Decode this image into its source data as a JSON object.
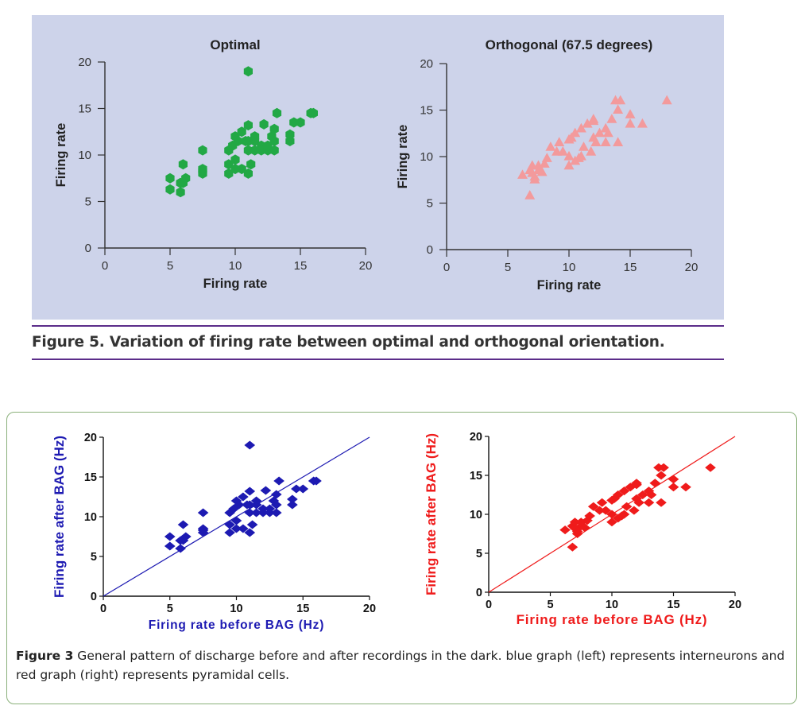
{
  "figure5": {
    "caption": "Figure 5. Variation of firing rate between optimal and orthogonal orientation."
  },
  "figure3": {
    "caption_label": "Figure 3",
    "caption_text": " General pattern of discharge before and after recordings in the dark. blue graph (left) represents interneurons and red graph (right) represents pyramidal cells."
  },
  "chart_data": [
    {
      "type": "scatter",
      "title": "Optimal",
      "xlabel": "Firing rate",
      "ylabel": "Firing rate",
      "xlim": [
        0,
        20
      ],
      "ylim": [
        0,
        20
      ],
      "xticks": [
        "0",
        "5",
        "10",
        "15",
        "20"
      ],
      "yticks": [
        "0",
        "5",
        "10",
        "15",
        "20"
      ],
      "marker": "hexagon",
      "color": "#22a845",
      "x": [
        5,
        5,
        5.8,
        5.8,
        6,
        6.2,
        6,
        7.5,
        7.5,
        7.5,
        7.5,
        9.5,
        9.5,
        9.5,
        9.8,
        10,
        10,
        10,
        10.2,
        10.5,
        10.5,
        10.8,
        11,
        11,
        11,
        11,
        11.2,
        11.5,
        11.5,
        11.5,
        12,
        12,
        12.2,
        12.5,
        12.5,
        12.8,
        13,
        13,
        13,
        13.2,
        14.2,
        14.2,
        14.5,
        15,
        15.8,
        16,
        11
      ],
      "y": [
        6.3,
        7.5,
        6,
        7,
        7,
        7.5,
        9,
        8,
        8.3,
        10.5,
        8.5,
        8,
        9,
        10.5,
        11,
        12,
        9.5,
        8.5,
        11.5,
        12.5,
        8.5,
        11.5,
        8,
        10.5,
        11.5,
        13.2,
        9,
        10.5,
        11.5,
        12,
        11,
        10.5,
        13.3,
        10.5,
        11,
        12,
        11.5,
        10.5,
        12.8,
        14.5,
        11.5,
        12.2,
        13.5,
        13.5,
        14.5,
        14.5,
        19
      ]
    },
    {
      "type": "scatter",
      "title": "Orthogonal (67.5 degrees)",
      "xlabel": "Firing rate",
      "ylabel": "Firing rate",
      "xlim": [
        0,
        20
      ],
      "ylim": [
        0,
        20
      ],
      "xticks": [
        "0",
        "5",
        "10",
        "15",
        "20"
      ],
      "yticks": [
        "0",
        "5",
        "10",
        "15",
        "20"
      ],
      "marker": "triangle",
      "color": "#f39a9c",
      "x": [
        6.2,
        6.8,
        7,
        7,
        7.2,
        7.5,
        7.5,
        7.8,
        8,
        8.2,
        8.5,
        9,
        9.5,
        10,
        10,
        10,
        10.2,
        10.5,
        10.5,
        11,
        11,
        11.2,
        11.5,
        11.8,
        12,
        12,
        12,
        12.2,
        12.5,
        13,
        13,
        13.2,
        13.5,
        13.8,
        14,
        14,
        14.2,
        15,
        15,
        16,
        18,
        6.8,
        7.2,
        9.2,
        10.8
      ],
      "y": [
        8,
        8.5,
        8.2,
        9,
        7.5,
        8.5,
        9,
        8.3,
        9.2,
        9.8,
        11,
        10.5,
        10.5,
        9,
        10,
        11.8,
        12,
        9.5,
        12.5,
        13,
        10,
        11,
        13.5,
        10.5,
        14,
        12,
        13.8,
        11.5,
        12.5,
        11.5,
        13,
        12.5,
        14,
        16,
        11.5,
        15,
        16,
        13.5,
        14.5,
        13.5,
        16,
        5.8,
        7.8,
        11.5,
        9.8
      ]
    },
    {
      "type": "scatter",
      "xlabel": "Firing rate before BAG (Hz)",
      "ylabel": "Firing rate after BAG (Hz)",
      "xlim": [
        0,
        20
      ],
      "ylim": [
        0,
        20
      ],
      "xticks": [
        "0",
        "5",
        "10",
        "15",
        "20"
      ],
      "yticks": [
        "0",
        "5",
        "10",
        "15",
        "20"
      ],
      "marker": "diamond",
      "color": "#1d1ab2",
      "x": [
        5,
        5,
        5.8,
        5.8,
        6,
        6.2,
        6,
        7.5,
        7.5,
        7.5,
        7.5,
        9.5,
        9.5,
        9.5,
        9.8,
        10,
        10,
        10,
        10.2,
        10.5,
        10.5,
        10.8,
        11,
        11,
        11,
        11,
        11.2,
        11.5,
        11.5,
        11.5,
        12,
        12,
        12.2,
        12.5,
        12.5,
        12.8,
        13,
        13,
        13,
        13.2,
        14.2,
        14.2,
        14.5,
        15,
        15.8,
        16,
        11
      ],
      "y": [
        6.3,
        7.5,
        6,
        7,
        7,
        7.5,
        9,
        8,
        8.3,
        10.5,
        8.5,
        8,
        9,
        10.5,
        11,
        12,
        9.5,
        8.5,
        11.5,
        12.5,
        8.5,
        11.5,
        8,
        10.5,
        11.5,
        13.2,
        9,
        10.5,
        11.5,
        12,
        11,
        10.5,
        13.3,
        10.5,
        11,
        12,
        11.5,
        10.5,
        12.8,
        14.5,
        11.5,
        12.2,
        13.5,
        13.5,
        14.5,
        14.5,
        19
      ],
      "line": {
        "from": [
          0,
          0
        ],
        "to": [
          20,
          20
        ]
      }
    },
    {
      "type": "scatter",
      "xlabel": "Firing rate before BAG (Hz)",
      "ylabel": "Firing rate after BAG (Hz)",
      "xlim": [
        0,
        20
      ],
      "ylim": [
        0,
        20
      ],
      "xticks": [
        "0",
        "5",
        "10",
        "15",
        "20"
      ],
      "yticks": [
        "0",
        "5",
        "10",
        "15",
        "20"
      ],
      "marker": "diamond",
      "color": "#ef1b1b",
      "x": [
        6.2,
        6.8,
        7,
        7,
        7.2,
        7.5,
        7.5,
        7.8,
        8,
        8.2,
        8.5,
        9,
        9.5,
        10,
        10,
        10,
        10.2,
        10.5,
        10.5,
        11,
        11,
        11.2,
        11.5,
        11.8,
        12,
        12,
        12,
        12.2,
        12.5,
        13,
        13,
        13.2,
        13.5,
        13.8,
        14,
        14,
        14.2,
        15,
        15,
        16,
        18,
        6.8,
        7.2,
        9.2,
        10.8
      ],
      "y": [
        8,
        8.5,
        8.2,
        9,
        7.5,
        8.5,
        9,
        8.3,
        9.2,
        9.8,
        11,
        10.5,
        10.5,
        9,
        10,
        11.8,
        12,
        9.5,
        12.5,
        13,
        10,
        11,
        13.5,
        10.5,
        14,
        12,
        13.8,
        11.5,
        12.5,
        11.5,
        13,
        12.5,
        14,
        16,
        11.5,
        15,
        16,
        13.5,
        14.5,
        13.5,
        16,
        5.8,
        7.8,
        11.5,
        9.8
      ],
      "line": {
        "from": [
          0,
          0
        ],
        "to": [
          20,
          20
        ]
      }
    }
  ]
}
